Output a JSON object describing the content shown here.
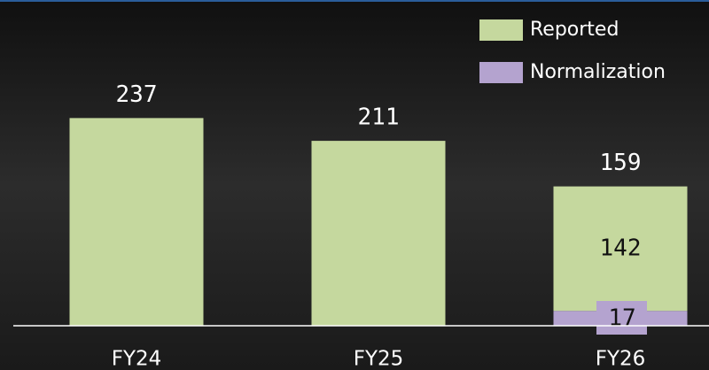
{
  "chart_data": {
    "type": "stacked_bar",
    "categories": [
      "FY24",
      "FY25",
      "FY26"
    ],
    "series": [
      {
        "name": "Reported",
        "color": "#c5d89e",
        "values": [
          237,
          211,
          142
        ]
      },
      {
        "name": "Normalization",
        "color": "#b4a3cf",
        "values": [
          null,
          null,
          17
        ]
      }
    ],
    "totals": [
      237,
      211,
      159
    ]
  }
}
